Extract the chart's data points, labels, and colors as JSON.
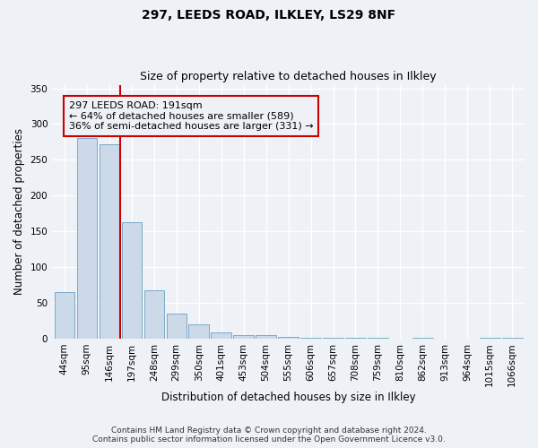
{
  "title": "297, LEEDS ROAD, ILKLEY, LS29 8NF",
  "subtitle": "Size of property relative to detached houses in Ilkley",
  "xlabel": "Distribution of detached houses by size in Ilkley",
  "ylabel": "Number of detached properties",
  "bar_labels": [
    "44sqm",
    "95sqm",
    "146sqm",
    "197sqm",
    "248sqm",
    "299sqm",
    "350sqm",
    "401sqm",
    "453sqm",
    "504sqm",
    "555sqm",
    "606sqm",
    "657sqm",
    "708sqm",
    "759sqm",
    "810sqm",
    "862sqm",
    "913sqm",
    "964sqm",
    "1015sqm",
    "1066sqm"
  ],
  "bar_values": [
    65,
    281,
    272,
    163,
    67,
    35,
    20,
    9,
    5,
    5,
    2,
    1,
    1,
    1,
    1,
    0,
    1,
    0,
    0,
    1,
    1
  ],
  "bar_color": "#ccd9e8",
  "bar_edge_color": "#7aaac8",
  "vline_color": "#cc0000",
  "annotation_box_text": "297 LEEDS ROAD: 191sqm\n← 64% of detached houses are smaller (589)\n36% of semi-detached houses are larger (331) →",
  "ylim": [
    0,
    355
  ],
  "yticks": [
    0,
    50,
    100,
    150,
    200,
    250,
    300,
    350
  ],
  "footer_line1": "Contains HM Land Registry data © Crown copyright and database right 2024.",
  "footer_line2": "Contains public sector information licensed under the Open Government Licence v3.0.",
  "bg_color": "#eef2f7",
  "title_fontsize": 10,
  "subtitle_fontsize": 9,
  "axis_label_fontsize": 8.5,
  "tick_fontsize": 7.5,
  "footer_fontsize": 6.5,
  "ann_fontsize": 8
}
